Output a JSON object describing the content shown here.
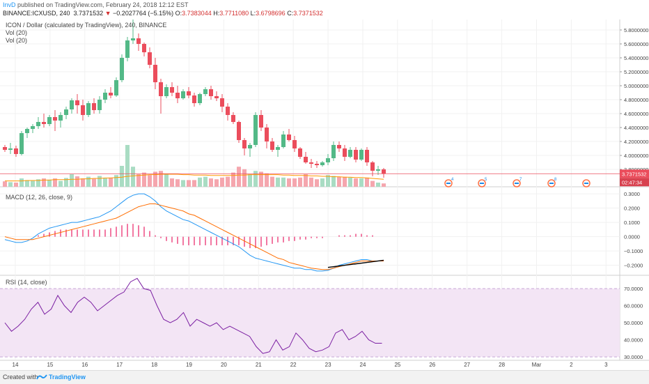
{
  "header": {
    "author": "InvD",
    "published": "published on TradingView.com, February 24, 2018 12:12 EST",
    "symbol": "BINANCE:ICXUSD, 240",
    "price": "3.7371532",
    "arrow": "▼",
    "change": "−0.2027764 (−5.15%)",
    "o_label": "O:",
    "o_value": "3.7383044",
    "h_label": "H:",
    "h_value": "3.7711080",
    "l_label": "L:",
    "l_value": "3.6798696",
    "c_label": "C:",
    "c_value": "3.7371532"
  },
  "labels": {
    "main_title": "ICON / Dollar (calculated by TradingView), 240, BINANCE",
    "vol1": "Vol (20)",
    "vol2": "Vol (20)",
    "macd": "MACD (12, 26, close, 9)",
    "rsi": "RSI (14, close)"
  },
  "footer": {
    "created": "Created with",
    "brand": "TradingView"
  },
  "colors": {
    "up": "#53b987",
    "down": "#eb4d5c",
    "vol_up": "#a9dcc3",
    "vol_down": "#f5a6ae",
    "macd": "#2196f3",
    "signal": "#ff6d00",
    "hist": "#e91e63",
    "rsi": "#7b1fa2",
    "rsi_band": "#f3e5f5"
  },
  "chart_data": [
    {
      "type": "candlestick",
      "title": "ICON / Dollar (calculated by TradingView), 240, BINANCE",
      "x_ticks": [
        "14",
        "15",
        "16",
        "17",
        "18",
        "19",
        "20",
        "21",
        "22",
        "23",
        "24",
        "25",
        "26",
        "27",
        "28",
        "Mar",
        "2",
        "3"
      ],
      "y_ticks": [
        "5.8000000",
        "5.6000000",
        "5.4000000",
        "5.2000000",
        "5.0000000",
        "4.8000000",
        "4.6000000",
        "4.4000000",
        "4.2000000",
        "4.0000000",
        "3.8000000"
      ],
      "ylim": [
        3.55,
        5.95
      ],
      "last_price_label": "3.7371532",
      "countdown_label": "02:47:34",
      "events": [
        "4",
        "5",
        "7",
        "8",
        ""
      ],
      "ohlc": [
        [
          4.12,
          4.15,
          4.05,
          4.08
        ],
        [
          4.08,
          4.18,
          4.02,
          4.1
        ],
        [
          4.1,
          4.14,
          3.98,
          4.02
        ],
        [
          4.02,
          4.35,
          4.0,
          4.32
        ],
        [
          4.32,
          4.4,
          4.25,
          4.38
        ],
        [
          4.38,
          4.45,
          4.32,
          4.42
        ],
        [
          4.42,
          4.55,
          4.38,
          4.48
        ],
        [
          4.48,
          4.6,
          4.4,
          4.45
        ],
        [
          4.45,
          4.58,
          4.42,
          4.55
        ],
        [
          4.55,
          4.65,
          4.35,
          4.5
        ],
        [
          4.5,
          4.62,
          4.4,
          4.58
        ],
        [
          4.58,
          4.7,
          4.52,
          4.66
        ],
        [
          4.66,
          4.82,
          4.6,
          4.79
        ],
        [
          4.79,
          4.88,
          4.6,
          4.72
        ],
        [
          4.72,
          4.8,
          4.5,
          4.58
        ],
        [
          4.58,
          4.78,
          4.55,
          4.75
        ],
        [
          4.75,
          4.82,
          4.6,
          4.65
        ],
        [
          4.65,
          4.85,
          4.6,
          4.8
        ],
        [
          4.8,
          4.95,
          4.75,
          4.9
        ],
        [
          4.9,
          4.98,
          4.82,
          4.86
        ],
        [
          4.86,
          5.12,
          4.84,
          5.08
        ],
        [
          5.08,
          5.45,
          5.05,
          5.4
        ],
        [
          5.4,
          5.7,
          5.35,
          5.65
        ],
        [
          5.65,
          5.95,
          5.6,
          5.68
        ],
        [
          5.68,
          5.75,
          5.5,
          5.6
        ],
        [
          5.6,
          5.62,
          5.42,
          5.48
        ],
        [
          5.48,
          5.55,
          5.25,
          5.3
        ],
        [
          5.3,
          5.4,
          4.95,
          5.05
        ],
        [
          5.05,
          5.1,
          4.6,
          4.85
        ],
        [
          4.85,
          5.02,
          4.82,
          4.98
        ],
        [
          4.98,
          5.05,
          4.85,
          4.9
        ],
        [
          4.9,
          5.0,
          4.75,
          4.82
        ],
        [
          4.82,
          4.95,
          4.8,
          4.92
        ],
        [
          4.92,
          4.98,
          4.82,
          4.86
        ],
        [
          4.86,
          4.9,
          4.7,
          4.75
        ],
        [
          4.75,
          4.9,
          4.72,
          4.88
        ],
        [
          4.88,
          4.98,
          4.85,
          4.95
        ],
        [
          4.95,
          5.0,
          4.8,
          4.85
        ],
        [
          4.85,
          4.92,
          4.78,
          4.82
        ],
        [
          4.82,
          4.88,
          4.62,
          4.7
        ],
        [
          4.7,
          4.75,
          4.5,
          4.58
        ],
        [
          4.58,
          4.62,
          4.45,
          4.48
        ],
        [
          4.48,
          4.5,
          4.18,
          4.22
        ],
        [
          4.22,
          4.25,
          4.0,
          4.1
        ],
        [
          4.1,
          4.18,
          3.98,
          4.15
        ],
        [
          4.15,
          4.62,
          4.12,
          4.58
        ],
        [
          4.58,
          4.65,
          4.35,
          4.4
        ],
        [
          4.4,
          4.45,
          4.1,
          4.2
        ],
        [
          4.2,
          4.25,
          4.05,
          4.08
        ],
        [
          4.08,
          4.15,
          3.98,
          4.12
        ],
        [
          4.12,
          4.35,
          4.1,
          4.3
        ],
        [
          4.3,
          4.38,
          4.2,
          4.22
        ],
        [
          4.22,
          4.28,
          4.05,
          4.1
        ],
        [
          4.1,
          4.12,
          3.95,
          3.98
        ],
        [
          3.98,
          4.05,
          3.88,
          3.9
        ],
        [
          3.9,
          3.95,
          3.82,
          3.88
        ],
        [
          3.88,
          3.92,
          3.82,
          3.86
        ],
        [
          3.86,
          3.92,
          3.84,
          3.9
        ],
        [
          3.9,
          4.02,
          3.86,
          3.96
        ],
        [
          3.96,
          4.2,
          3.92,
          4.15
        ],
        [
          4.15,
          4.2,
          4.05,
          4.1
        ],
        [
          4.1,
          4.15,
          3.92,
          3.98
        ],
        [
          3.98,
          4.12,
          3.96,
          4.08
        ],
        [
          4.08,
          4.12,
          3.9,
          3.94
        ],
        [
          3.94,
          4.1,
          3.92,
          4.08
        ],
        [
          4.08,
          4.12,
          3.85,
          3.9
        ],
        [
          3.9,
          3.92,
          3.7,
          3.78
        ],
        [
          3.78,
          3.85,
          3.72,
          3.8
        ],
        [
          3.8,
          3.82,
          3.68,
          3.74
        ]
      ],
      "volume": [
        0.13,
        0.11,
        0.1,
        0.2,
        0.16,
        0.14,
        0.18,
        0.2,
        0.17,
        0.2,
        0.14,
        0.21,
        0.3,
        0.25,
        0.2,
        0.24,
        0.19,
        0.26,
        0.2,
        0.22,
        0.28,
        0.5,
        1.0,
        0.48,
        0.3,
        0.34,
        0.28,
        0.36,
        0.38,
        0.3,
        0.2,
        0.18,
        0.16,
        0.16,
        0.16,
        0.22,
        0.24,
        0.2,
        0.18,
        0.22,
        0.24,
        0.34,
        0.48,
        0.42,
        0.3,
        0.38,
        0.36,
        0.32,
        0.24,
        0.22,
        0.22,
        0.2,
        0.2,
        0.22,
        0.3,
        0.22,
        0.18,
        0.2,
        0.28,
        0.26,
        0.24,
        0.24,
        0.22,
        0.2,
        0.2,
        0.22,
        0.14,
        0.1,
        0.08
      ],
      "volume_ma": [
        0.14,
        0.14,
        0.14,
        0.14,
        0.15,
        0.15,
        0.15,
        0.16,
        0.16,
        0.17,
        0.17,
        0.17,
        0.18,
        0.18,
        0.19,
        0.19,
        0.2,
        0.2,
        0.21,
        0.21,
        0.22,
        0.23,
        0.25,
        0.26,
        0.27,
        0.28,
        0.29,
        0.29,
        0.3,
        0.3,
        0.3,
        0.3,
        0.29,
        0.29,
        0.28,
        0.28,
        0.28,
        0.27,
        0.27,
        0.27,
        0.27,
        0.27,
        0.28,
        0.28,
        0.29,
        0.29,
        0.29,
        0.29,
        0.29,
        0.29,
        0.28,
        0.28,
        0.27,
        0.27,
        0.27,
        0.26,
        0.26,
        0.25,
        0.25,
        0.24,
        0.24,
        0.23,
        0.23,
        0.22,
        0.22,
        0.21,
        0.2,
        0.19,
        0.18
      ]
    },
    {
      "type": "line",
      "title": "MACD (12, 26, close, 9)",
      "y_ticks": [
        "0.3000",
        "0.2000",
        "0.1000",
        "0.0000",
        "−0.1000",
        "−0.2000"
      ],
      "ylim": [
        -0.27,
        0.33
      ],
      "series": [
        {
          "name": "MACD",
          "values": [
            -0.02,
            -0.03,
            -0.04,
            -0.04,
            -0.03,
            -0.01,
            0.02,
            0.04,
            0.06,
            0.07,
            0.08,
            0.09,
            0.1,
            0.1,
            0.11,
            0.12,
            0.13,
            0.14,
            0.16,
            0.18,
            0.21,
            0.24,
            0.27,
            0.29,
            0.3,
            0.3,
            0.28,
            0.25,
            0.21,
            0.18,
            0.16,
            0.14,
            0.12,
            0.11,
            0.09,
            0.07,
            0.05,
            0.03,
            0.01,
            -0.01,
            -0.03,
            -0.05,
            -0.07,
            -0.1,
            -0.13,
            -0.15,
            -0.16,
            -0.17,
            -0.18,
            -0.19,
            -0.2,
            -0.21,
            -0.22,
            -0.22,
            -0.23,
            -0.23,
            -0.24,
            -0.24,
            -0.235,
            -0.22,
            -0.2,
            -0.19,
            -0.18,
            -0.17,
            -0.16,
            -0.16,
            -0.17,
            -0.17,
            -0.17
          ]
        },
        {
          "name": "Signal",
          "values": [
            0.0,
            -0.01,
            -0.02,
            -0.02,
            -0.02,
            -0.02,
            -0.01,
            0.0,
            0.01,
            0.02,
            0.03,
            0.04,
            0.05,
            0.06,
            0.07,
            0.08,
            0.09,
            0.1,
            0.11,
            0.12,
            0.13,
            0.15,
            0.17,
            0.19,
            0.21,
            0.22,
            0.23,
            0.23,
            0.22,
            0.21,
            0.2,
            0.19,
            0.18,
            0.16,
            0.15,
            0.13,
            0.11,
            0.09,
            0.07,
            0.05,
            0.03,
            0.01,
            -0.01,
            -0.03,
            -0.05,
            -0.07,
            -0.09,
            -0.11,
            -0.13,
            -0.15,
            -0.16,
            -0.18,
            -0.19,
            -0.2,
            -0.21,
            -0.22,
            -0.225,
            -0.23,
            -0.23,
            -0.22,
            -0.21,
            -0.2,
            -0.19,
            -0.18,
            -0.17,
            -0.17,
            -0.17,
            -0.17,
            -0.17
          ]
        },
        {
          "name": "Histogram",
          "values": [
            0,
            0,
            0,
            0,
            0,
            0,
            0.01,
            0.02,
            0.03,
            0.04,
            0.05,
            0.05,
            0.05,
            0.05,
            0.05,
            0.05,
            0.05,
            0.05,
            0.05,
            0.06,
            0.07,
            0.08,
            0.09,
            0.09,
            0.08,
            0.07,
            0.04,
            0.01,
            -0.01,
            -0.03,
            -0.04,
            -0.05,
            -0.06,
            -0.06,
            -0.06,
            -0.06,
            -0.06,
            -0.06,
            -0.06,
            -0.06,
            -0.06,
            -0.06,
            -0.06,
            -0.07,
            -0.08,
            -0.08,
            -0.07,
            -0.06,
            -0.05,
            -0.04,
            -0.04,
            -0.03,
            -0.03,
            -0.02,
            -0.02,
            -0.01,
            -0.01,
            -0.01,
            0,
            0,
            0.01,
            0.01,
            0.01,
            0.02,
            0.02,
            0.01,
            0.01,
            0,
            0
          ]
        }
      ],
      "trendline": {
        "from": [
          58,
          -0.215
        ],
        "to": [
          68,
          -0.165
        ]
      }
    },
    {
      "type": "line",
      "title": "RSI (14, close)",
      "y_ticks": [
        "70.0000",
        "60.0000",
        "50.0000",
        "40.0000",
        "30.0000"
      ],
      "ylim": [
        28,
        77
      ],
      "band": [
        30,
        70
      ],
      "series": [
        {
          "name": "RSI",
          "values": [
            50,
            45,
            48,
            52,
            58,
            62,
            55,
            58,
            66,
            60,
            56,
            62,
            65,
            62,
            57,
            60,
            63,
            66,
            68,
            74,
            76,
            70,
            69,
            60,
            52,
            50,
            52,
            56,
            48,
            52,
            50,
            48,
            50,
            46,
            48,
            46,
            44,
            42,
            36,
            32,
            33,
            40,
            34,
            36,
            44,
            40,
            35,
            33,
            34,
            36,
            44,
            46,
            40,
            42,
            45,
            40,
            38,
            38
          ]
        }
      ]
    }
  ]
}
